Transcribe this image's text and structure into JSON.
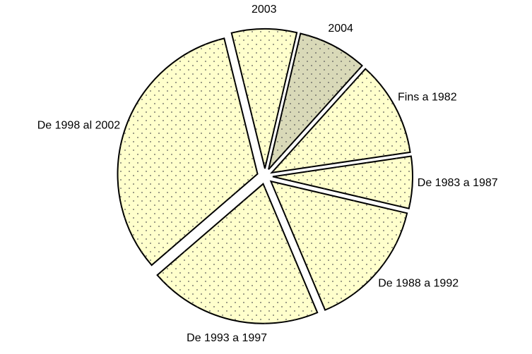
{
  "chart_data": {
    "type": "pie",
    "categories": [
      "Fins a 1982",
      "De 1983 a 1987",
      "De 1988 a 1992",
      "De 1993 a 1997",
      "De 1998 al 2002",
      "2003",
      "2004"
    ],
    "values": [
      11,
      6,
      15,
      20,
      32.5,
      7.5,
      8
    ],
    "colors": [
      "#ffffcc",
      "#ffffcc",
      "#ffffcc",
      "#ffffcc",
      "#ffffcc",
      "#ffffcc",
      "#d9d9b8"
    ]
  }
}
